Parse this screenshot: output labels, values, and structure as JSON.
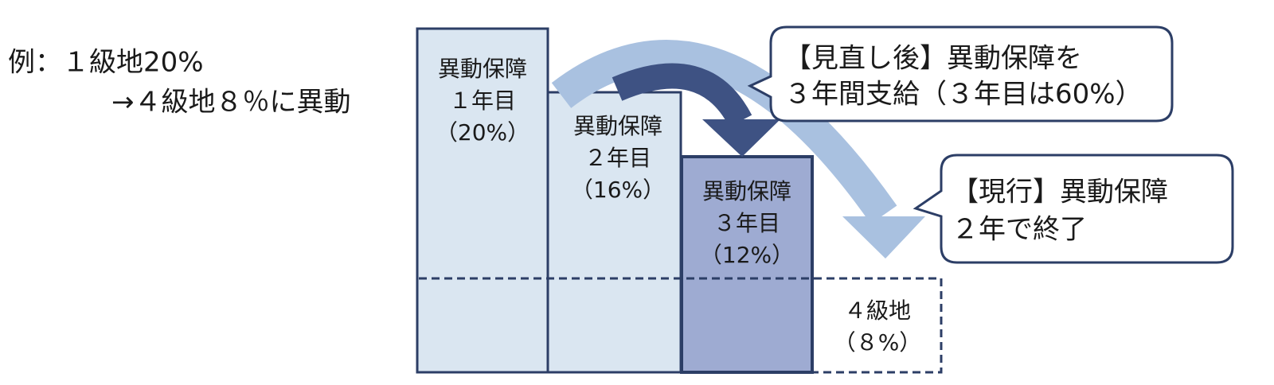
{
  "example": {
    "line1": "例：１級地20%",
    "line2": "→４級地８％に異動"
  },
  "bars": [
    {
      "label": "異動保障",
      "year": "１年目",
      "rate": "（20%）"
    },
    {
      "label": "異動保障",
      "year": "２年目",
      "rate": "（16%）"
    },
    {
      "label": "異動保障",
      "year": "３年目",
      "rate": "（12%）"
    }
  ],
  "destination": {
    "label": "４級地",
    "rate": "（８%）"
  },
  "callouts": [
    {
      "lines": [
        "【見直し後】異動保障を",
        "３年間支給（３年目は60%）"
      ]
    },
    {
      "lines": [
        "【現行】異動保障",
        "２年で終了"
      ]
    }
  ]
}
